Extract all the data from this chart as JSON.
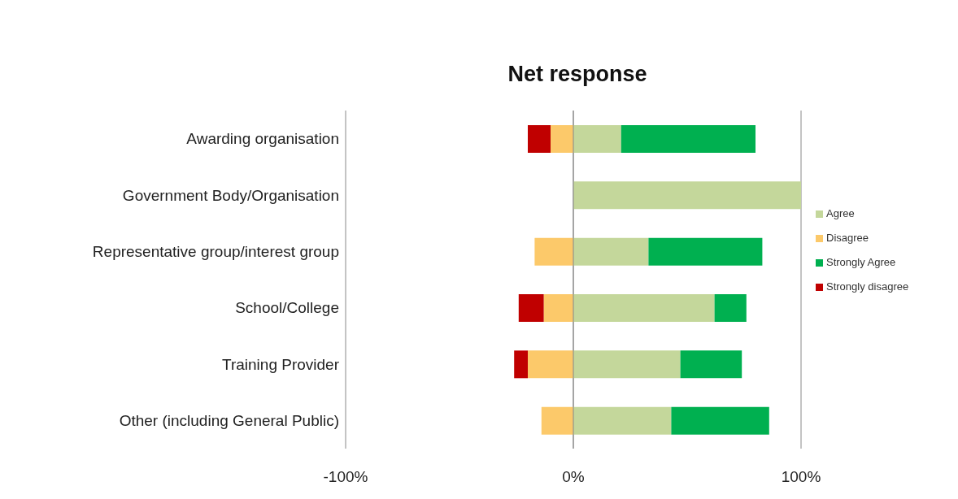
{
  "chart_data": {
    "type": "bar",
    "title": "Net response",
    "orientation": "horizontal",
    "stacked": true,
    "categories": [
      "Awarding organisation",
      "Government Body/Organisation",
      "Representative group/interest group",
      "School/College",
      "Training Provider",
      "Other (including General Public)"
    ],
    "series": [
      {
        "name": "Agree",
        "color": "#c4d79b",
        "values": [
          21,
          100,
          33,
          62,
          47,
          43
        ]
      },
      {
        "name": "Strongly Agree",
        "color": "#00b050",
        "values": [
          59,
          0,
          50,
          14,
          27,
          43
        ]
      },
      {
        "name": "Disagree",
        "color": "#fcc96a",
        "values": [
          -10,
          0,
          -17,
          -13,
          -20,
          -14
        ]
      },
      {
        "name": "Strongly disagree",
        "color": "#c00000",
        "values": [
          -10,
          0,
          0,
          -11,
          -6,
          0
        ]
      }
    ],
    "xlim": [
      -100,
      100
    ],
    "xticks": [
      {
        "value": -100,
        "label": "-100%"
      },
      {
        "value": 0,
        "label": "0%"
      },
      {
        "value": 100,
        "label": "100%"
      }
    ],
    "grid": "x",
    "legend": "right"
  }
}
